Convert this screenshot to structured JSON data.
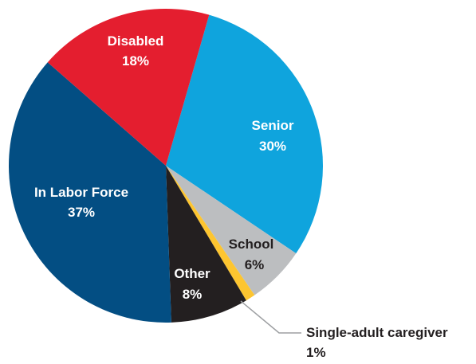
{
  "chart_data": {
    "type": "pie",
    "title": "",
    "slices": [
      {
        "label": "Senior",
        "value": 30,
        "value_label": "30%",
        "color": "#0fa4dd"
      },
      {
        "label": "School",
        "value": 6,
        "value_label": "6%",
        "color": "#bcbec0"
      },
      {
        "label": "Single-adult caregiver",
        "value": 1,
        "value_label": "1%",
        "color": "#fdc530"
      },
      {
        "label": "Other",
        "value": 8,
        "value_label": "8%",
        "color": "#231f20"
      },
      {
        "label": "In Labor Force",
        "value": 37,
        "value_label": "37%",
        "color": "#034e83"
      },
      {
        "label": "Disabled",
        "value": 18,
        "value_label": "18%",
        "color": "#e41e2f"
      }
    ],
    "legend": "none"
  }
}
